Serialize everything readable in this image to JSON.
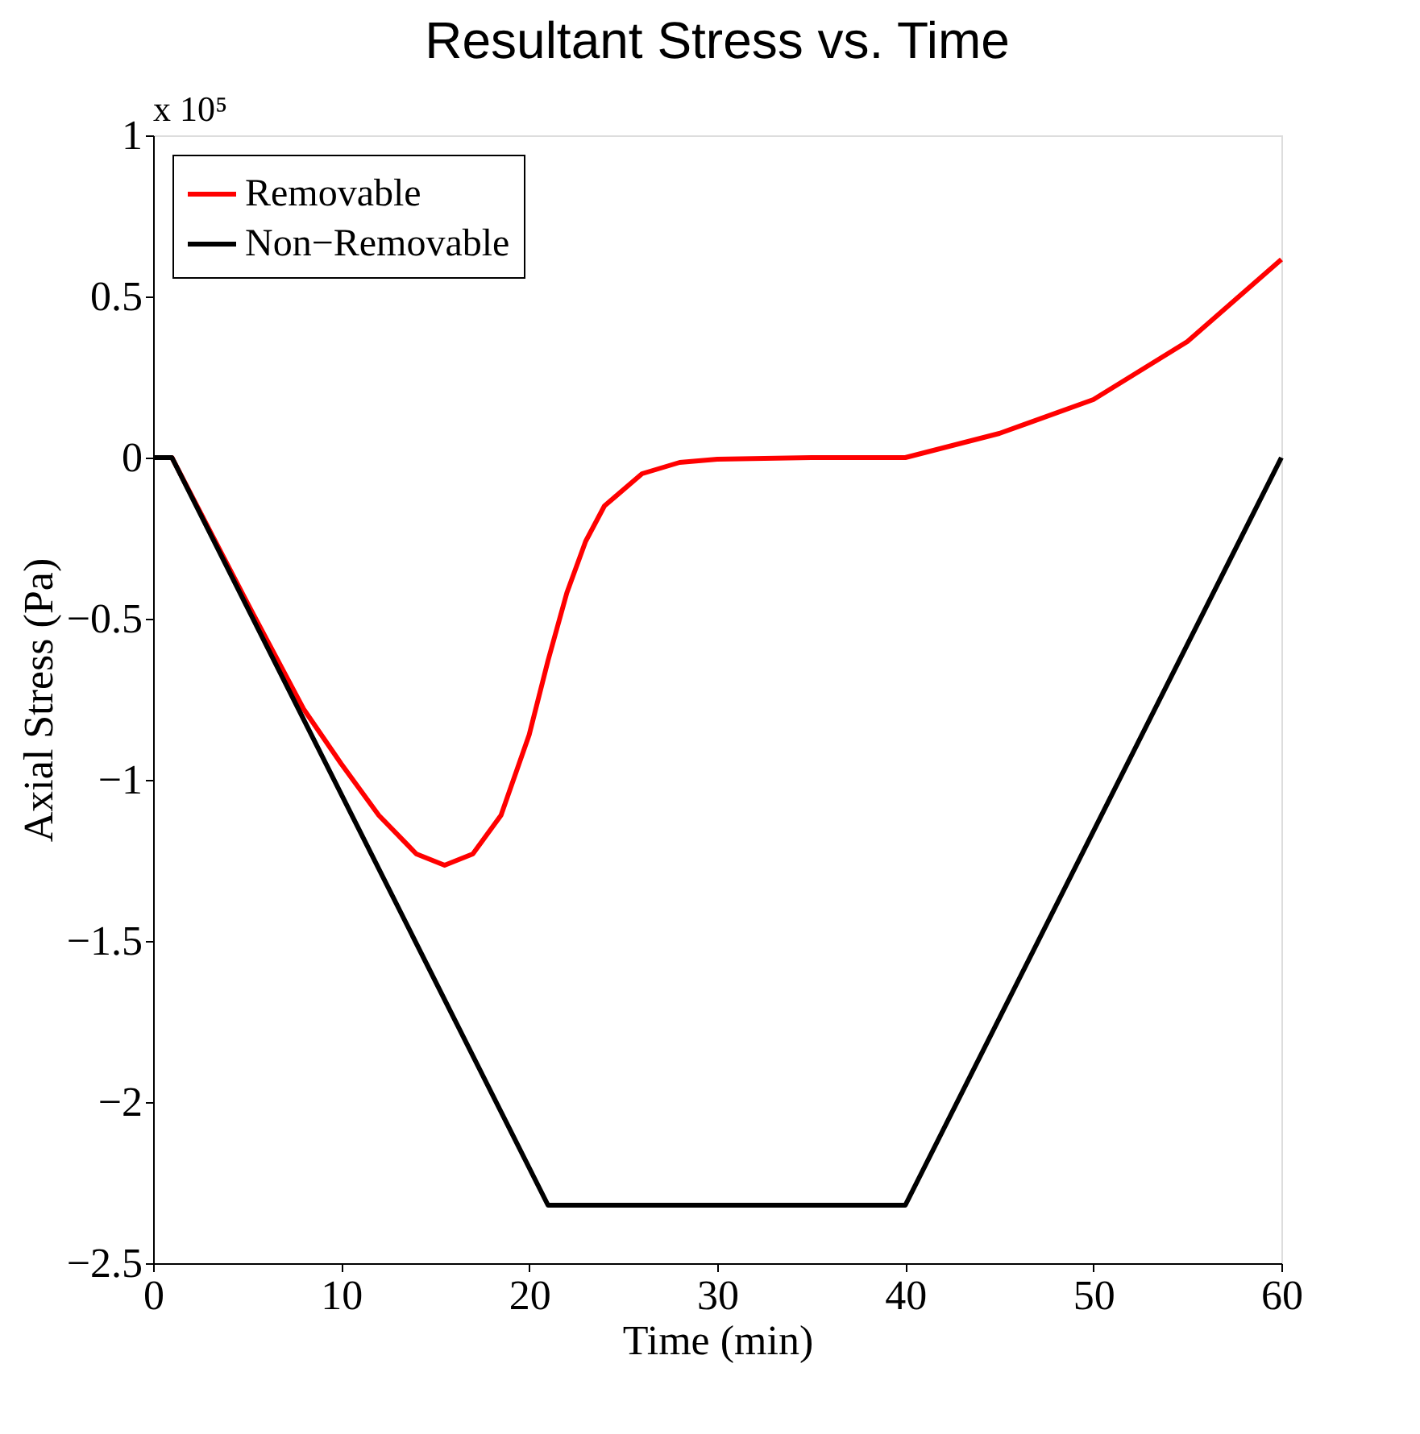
{
  "chart_data": {
    "type": "line",
    "title": "Resultant Stress vs. Time",
    "xlabel": "Time (min)",
    "ylabel": "Axial Stress (Pa)",
    "annotations": [
      "x 10⁵"
    ],
    "xlim": [
      0,
      60
    ],
    "xticks": [
      0,
      10,
      20,
      30,
      40,
      50,
      60
    ],
    "ylim": [
      -2.5,
      1
    ],
    "yticks": [
      -2.5,
      -2,
      -1.5,
      -1,
      -0.5,
      0,
      0.5,
      1
    ],
    "grid": false,
    "legend": "top left",
    "marker": "none",
    "line_style": "solid",
    "series": [
      {
        "name": "Removable",
        "color": "#ff0000",
        "x": [
          0,
          1,
          5,
          8,
          10,
          12,
          14,
          15.5,
          17,
          18.5,
          20,
          21,
          22,
          23,
          24,
          26,
          28,
          30,
          35,
          40,
          45,
          50,
          55,
          60
        ],
        "values": [
          0,
          0,
          -0.45,
          -0.78,
          -0.95,
          -1.11,
          -1.23,
          -1.265,
          -1.23,
          -1.11,
          -0.86,
          -0.63,
          -0.42,
          -0.26,
          -0.15,
          -0.05,
          -0.015,
          -0.005,
          0,
          0,
          0.075,
          0.18,
          0.36,
          0.615
        ]
      },
      {
        "name": "Non−Removable",
        "color": "#000000",
        "x": [
          0,
          1,
          21,
          40,
          60
        ],
        "values": [
          0,
          0,
          -2.32,
          -2.32,
          0
        ]
      }
    ]
  }
}
